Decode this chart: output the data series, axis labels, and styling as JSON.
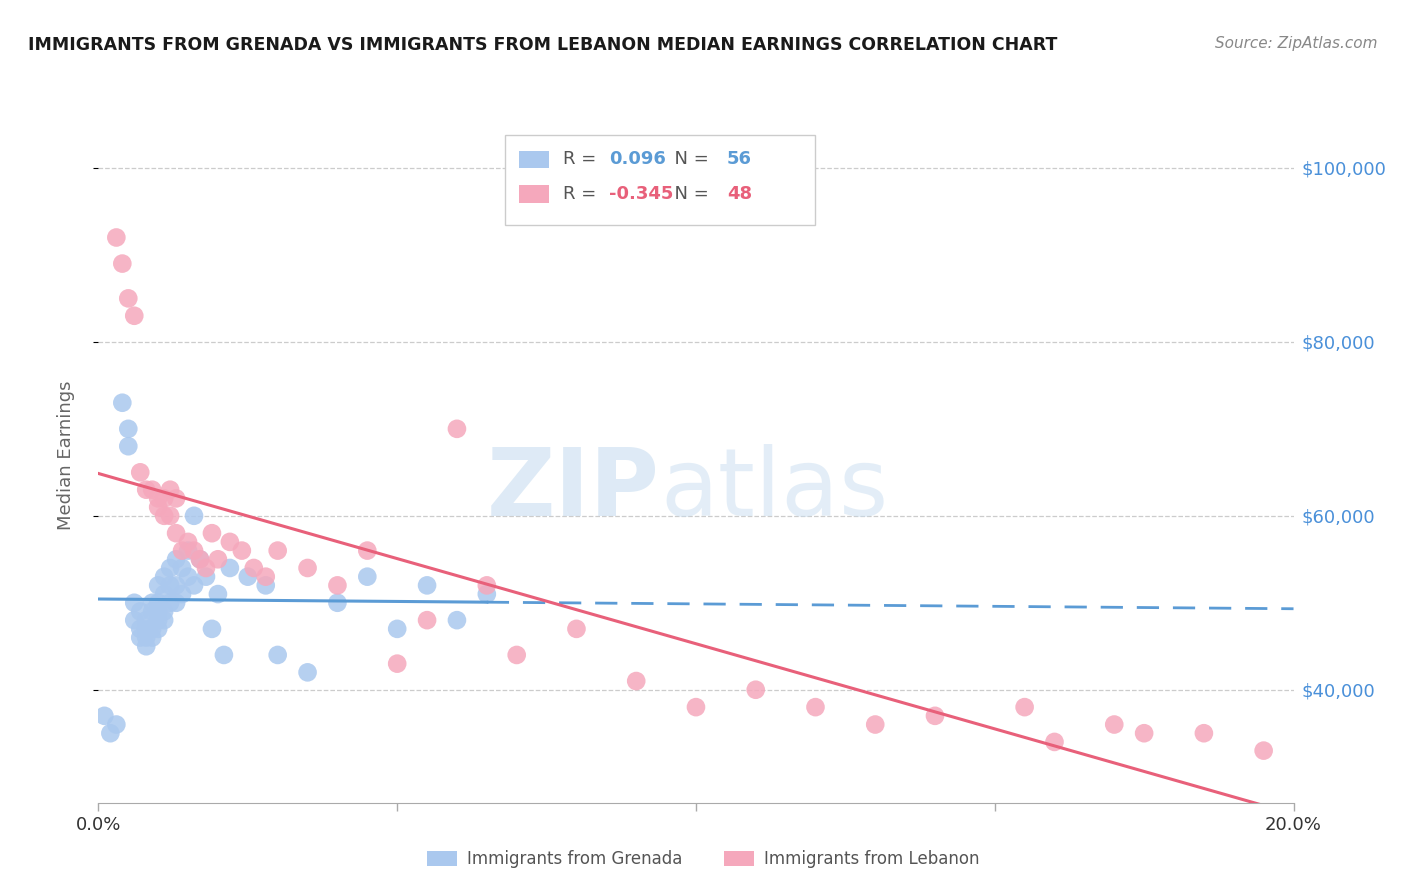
{
  "title": "IMMIGRANTS FROM GRENADA VS IMMIGRANTS FROM LEBANON MEDIAN EARNINGS CORRELATION CHART",
  "source": "Source: ZipAtlas.com",
  "ylabel": "Median Earnings",
  "watermark_zip": "ZIP",
  "watermark_atlas": "atlas",
  "xlim": [
    0.0,
    0.2
  ],
  "ylim": [
    27000,
    107000
  ],
  "yticks": [
    40000,
    60000,
    80000,
    100000
  ],
  "ytick_labels": [
    "$40,000",
    "$60,000",
    "$80,000",
    "$100,000"
  ],
  "xticks": [
    0.0,
    0.05,
    0.1,
    0.15,
    0.2
  ],
  "xtick_labels": [
    "0.0%",
    "",
    "",
    "",
    "20.0%"
  ],
  "grenada_R": "0.096",
  "grenada_N": "56",
  "lebanon_R": "-0.345",
  "lebanon_N": "48",
  "grenada_color": "#aac8ee",
  "lebanon_color": "#f5a8bc",
  "grenada_line_color": "#5b9bd5",
  "lebanon_line_color": "#e8607a",
  "background_color": "#ffffff",
  "grid_color": "#cccccc",
  "title_color": "#1a1a1a",
  "right_tick_color": "#4a90d9",
  "source_color": "#888888",
  "legend_border_color": "#cccccc",
  "grenada_x": [
    0.001,
    0.002,
    0.003,
    0.004,
    0.005,
    0.005,
    0.006,
    0.006,
    0.007,
    0.007,
    0.007,
    0.008,
    0.008,
    0.008,
    0.008,
    0.009,
    0.009,
    0.009,
    0.009,
    0.01,
    0.01,
    0.01,
    0.01,
    0.01,
    0.011,
    0.011,
    0.011,
    0.011,
    0.012,
    0.012,
    0.012,
    0.013,
    0.013,
    0.013,
    0.014,
    0.014,
    0.015,
    0.015,
    0.016,
    0.016,
    0.017,
    0.018,
    0.019,
    0.02,
    0.021,
    0.022,
    0.025,
    0.028,
    0.03,
    0.035,
    0.04,
    0.045,
    0.05,
    0.055,
    0.06,
    0.065
  ],
  "grenada_y": [
    37000,
    35000,
    36000,
    73000,
    70000,
    68000,
    48000,
    50000,
    49000,
    47000,
    46000,
    48000,
    47000,
    46000,
    45000,
    50000,
    49000,
    47000,
    46000,
    52000,
    50000,
    49000,
    48000,
    47000,
    53000,
    51000,
    49000,
    48000,
    54000,
    52000,
    50000,
    55000,
    52000,
    50000,
    54000,
    51000,
    56000,
    53000,
    60000,
    52000,
    55000,
    53000,
    47000,
    51000,
    44000,
    54000,
    53000,
    52000,
    44000,
    42000,
    50000,
    53000,
    47000,
    52000,
    48000,
    51000
  ],
  "lebanon_x": [
    0.003,
    0.004,
    0.005,
    0.006,
    0.007,
    0.008,
    0.009,
    0.01,
    0.01,
    0.011,
    0.011,
    0.012,
    0.012,
    0.013,
    0.013,
    0.014,
    0.015,
    0.016,
    0.017,
    0.018,
    0.019,
    0.02,
    0.022,
    0.024,
    0.026,
    0.028,
    0.03,
    0.035,
    0.04,
    0.045,
    0.05,
    0.055,
    0.06,
    0.065,
    0.07,
    0.08,
    0.09,
    0.1,
    0.11,
    0.12,
    0.13,
    0.14,
    0.155,
    0.16,
    0.17,
    0.175,
    0.185,
    0.195
  ],
  "lebanon_y": [
    92000,
    89000,
    85000,
    83000,
    65000,
    63000,
    63000,
    62000,
    61000,
    62000,
    60000,
    63000,
    60000,
    62000,
    58000,
    56000,
    57000,
    56000,
    55000,
    54000,
    58000,
    55000,
    57000,
    56000,
    54000,
    53000,
    56000,
    54000,
    52000,
    56000,
    43000,
    48000,
    70000,
    52000,
    44000,
    47000,
    41000,
    38000,
    40000,
    38000,
    36000,
    37000,
    38000,
    34000,
    36000,
    35000,
    35000,
    33000
  ]
}
